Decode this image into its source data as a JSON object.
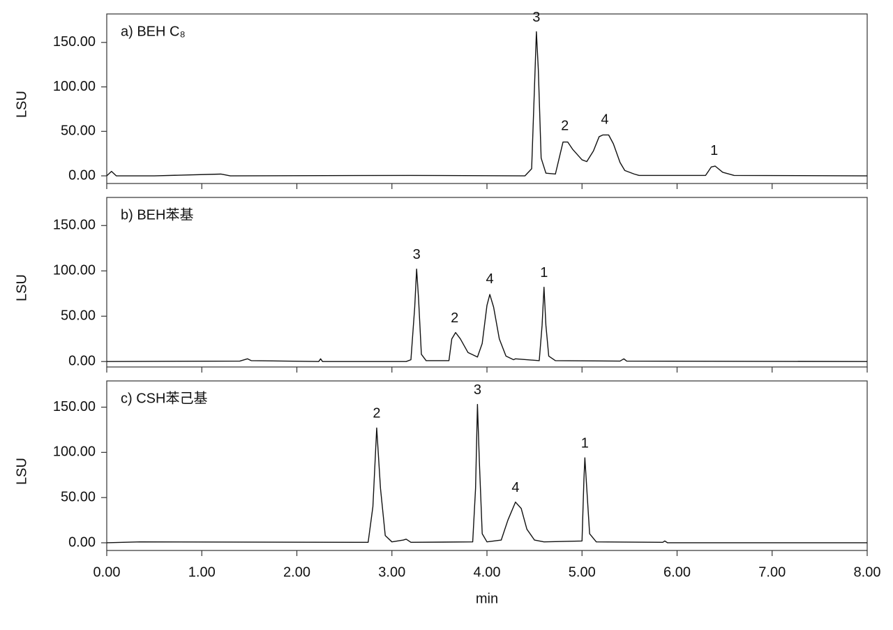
{
  "chart_data": [
    {
      "type": "line",
      "title": "a) BEH C₈",
      "ylabel": "LSU",
      "xlim": [
        0,
        8
      ],
      "ylim": [
        -8.6,
        182
      ],
      "xticks": [
        0,
        1,
        2,
        3,
        4,
        5,
        6,
        7,
        8
      ],
      "yticks": [
        {
          "value": 0,
          "label": "0.00"
        },
        {
          "value": 50,
          "label": "50.00"
        },
        {
          "value": 100,
          "label": "100.00"
        },
        {
          "value": 150,
          "label": "150.00"
        }
      ],
      "x": [
        0,
        0.05,
        0.1,
        0.5,
        1.2,
        1.3,
        3.2,
        4.4,
        4.47,
        4.5,
        4.52,
        4.54,
        4.57,
        4.62,
        4.72,
        4.76,
        4.8,
        4.85,
        4.9,
        5.0,
        5.05,
        5.12,
        5.18,
        5.22,
        5.28,
        5.33,
        5.4,
        5.45,
        5.55,
        5.6,
        6.3,
        6.36,
        6.4,
        6.48,
        6.6,
        8
      ],
      "series": [
        {
          "color": "#111111",
          "values": [
            0,
            5,
            0,
            0,
            2,
            0,
            0.5,
            0,
            8,
            100,
            162,
            120,
            20,
            3,
            2,
            20,
            38,
            38,
            30,
            18,
            16,
            28,
            44,
            46,
            46,
            36,
            15,
            6,
            2,
            0.5,
            0.5,
            10,
            11,
            4,
            0.5,
            0
          ]
        }
      ],
      "annotations": [
        {
          "text": "3",
          "x": 4.52,
          "y": 162
        },
        {
          "text": "2",
          "x": 4.82,
          "y": 40
        },
        {
          "text": "4",
          "x": 5.24,
          "y": 47
        },
        {
          "text": "1",
          "x": 6.39,
          "y": 12
        }
      ]
    },
    {
      "type": "line",
      "title": "b) BEH苯基",
      "ylabel": "LSU",
      "xlim": [
        0,
        8
      ],
      "ylim": [
        -6,
        181
      ],
      "xticks": [
        0,
        1,
        2,
        3,
        4,
        5,
        6,
        7,
        8
      ],
      "yticks": [
        {
          "value": 0,
          "label": "0.00"
        },
        {
          "value": 50,
          "label": "50.00"
        },
        {
          "value": 100,
          "label": "100.00"
        },
        {
          "value": 150,
          "label": "150.00"
        }
      ],
      "x": [
        0,
        1.4,
        1.48,
        1.52,
        2.23,
        2.25,
        2.27,
        3.15,
        3.2,
        3.24,
        3.26,
        3.28,
        3.31,
        3.36,
        3.6,
        3.63,
        3.67,
        3.72,
        3.8,
        3.9,
        3.95,
        4.0,
        4.03,
        4.07,
        4.13,
        4.2,
        4.28,
        4.3,
        4.55,
        4.58,
        4.6,
        4.62,
        4.65,
        4.72,
        5.4,
        5.44,
        5.47,
        8
      ],
      "series": [
        {
          "color": "#111111",
          "values": [
            0,
            0.5,
            3,
            1,
            0,
            3,
            0,
            0,
            2,
            60,
            102,
            70,
            8,
            1,
            1,
            25,
            32,
            25,
            10,
            5,
            20,
            62,
            74,
            60,
            25,
            6,
            2,
            3,
            1,
            40,
            82,
            40,
            6,
            1,
            0.5,
            3,
            0.5,
            0
          ]
        }
      ],
      "annotations": [
        {
          "text": "3",
          "x": 3.26,
          "y": 102
        },
        {
          "text": "2",
          "x": 3.66,
          "y": 32
        },
        {
          "text": "4",
          "x": 4.03,
          "y": 75
        },
        {
          "text": "1",
          "x": 4.6,
          "y": 82
        }
      ]
    },
    {
      "type": "line",
      "title": "c) CSH苯己基",
      "ylabel": "LSU",
      "xlabel": "min",
      "xlim": [
        0,
        8
      ],
      "ylim": [
        -8.5,
        179
      ],
      "xticks": [
        {
          "value": 0,
          "label": "0.00"
        },
        {
          "value": 1,
          "label": "1.00"
        },
        {
          "value": 2,
          "label": "2.00"
        },
        {
          "value": 3,
          "label": "3.00"
        },
        {
          "value": 4,
          "label": "4.00"
        },
        {
          "value": 5,
          "label": "5.00"
        },
        {
          "value": 6,
          "label": "6.00"
        },
        {
          "value": 7,
          "label": "7.00"
        },
        {
          "value": 8,
          "label": "8.00"
        }
      ],
      "yticks": [
        {
          "value": 0,
          "label": "0.00"
        },
        {
          "value": 50,
          "label": "50.00"
        },
        {
          "value": 100,
          "label": "100.00"
        },
        {
          "value": 150,
          "label": "150.00"
        }
      ],
      "x": [
        0,
        0.35,
        2.75,
        2.8,
        2.84,
        2.88,
        2.93,
        3.0,
        3.12,
        3.15,
        3.2,
        3.85,
        3.88,
        3.9,
        3.92,
        3.95,
        4.0,
        4.15,
        4.22,
        4.3,
        4.36,
        4.42,
        4.5,
        4.6,
        5.0,
        5.02,
        5.03,
        5.05,
        5.08,
        5.15,
        5.85,
        5.87,
        5.9,
        8
      ],
      "series": [
        {
          "color": "#111111",
          "values": [
            0,
            1,
            0.5,
            40,
            127,
            60,
            8,
            1,
            3,
            4,
            0.5,
            1,
            60,
            153,
            90,
            10,
            1,
            3,
            25,
            45,
            38,
            15,
            3,
            1,
            2,
            70,
            94,
            60,
            10,
            1,
            0.5,
            2,
            0,
            0
          ]
        }
      ],
      "annotations": [
        {
          "text": "2",
          "x": 2.84,
          "y": 127
        },
        {
          "text": "3",
          "x": 3.9,
          "y": 153
        },
        {
          "text": "4",
          "x": 4.3,
          "y": 45
        },
        {
          "text": "1",
          "x": 5.03,
          "y": 94
        }
      ]
    }
  ]
}
